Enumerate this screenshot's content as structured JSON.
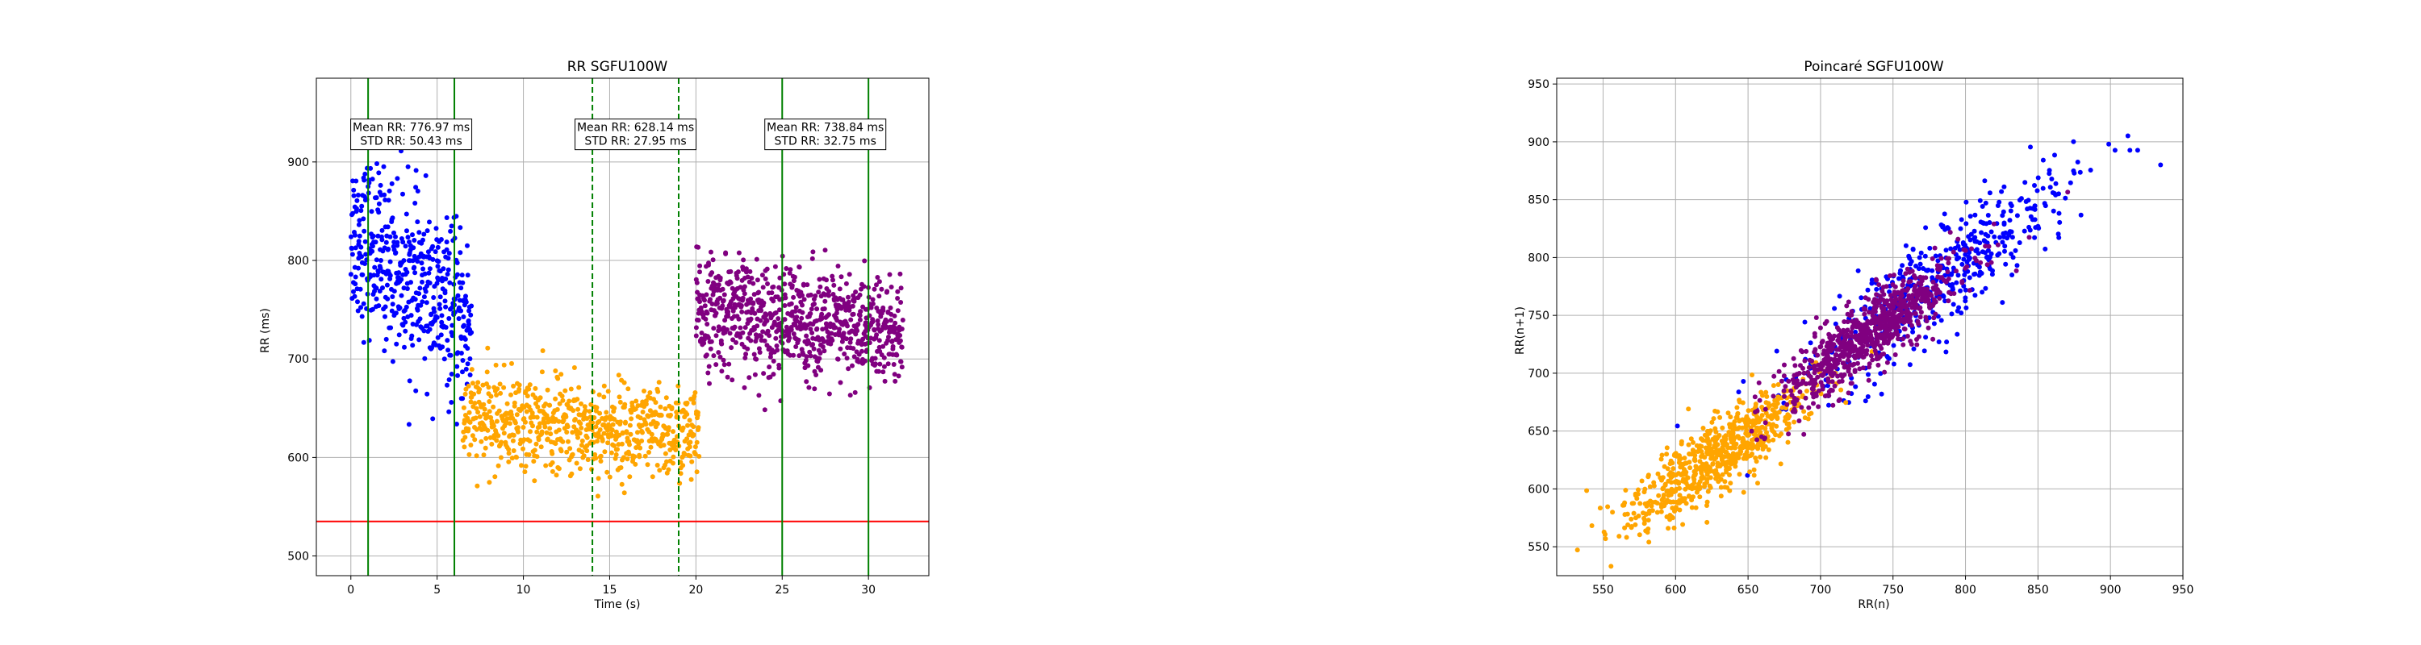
{
  "figure": {
    "background": "#ffffff"
  },
  "chart_data": [
    {
      "type": "scatter",
      "title": "RR SGFU100W",
      "xlabel": "Time (s)",
      "ylabel": "RR (ms)",
      "xlim": [
        -2,
        33.5
      ],
      "ylim": [
        480,
        985
      ],
      "xticks": [
        0,
        5,
        10,
        15,
        20,
        25,
        30
      ],
      "yticks": [
        500,
        600,
        700,
        800,
        900
      ],
      "grid": true,
      "threshold_line": {
        "y": 535,
        "color": "#ff0000"
      },
      "solid_vlines": {
        "x": [
          1,
          6,
          25,
          30
        ],
        "color": "#008000"
      },
      "dashed_vlines": {
        "x": [
          14,
          19
        ],
        "color": "#008000"
      },
      "annotations": [
        {
          "x": 3.5,
          "y": 928,
          "lines": [
            "Mean RR: 776.97 ms",
            "STD RR: 50.43 ms"
          ]
        },
        {
          "x": 16.5,
          "y": 928,
          "lines": [
            "Mean RR: 628.14 ms",
            "STD RR: 27.95 ms"
          ]
        },
        {
          "x": 27.5,
          "y": 928,
          "lines": [
            "Mean RR: 738.84 ms",
            "STD RR: 32.75 ms"
          ]
        }
      ],
      "series": [
        {
          "color": "#0000ff",
          "x_range": [
            0,
            7
          ],
          "mean": 777,
          "std": 50,
          "count": 480,
          "trend": [
            830,
            730
          ]
        },
        {
          "color": "#ffa500",
          "x_range": [
            6.5,
            20.2
          ],
          "mean": 628,
          "std": 28,
          "count": 700,
          "trend": [
            640,
            620
          ]
        },
        {
          "color": "#800080",
          "x_range": [
            20,
            32
          ],
          "mean": 739,
          "std": 33,
          "count": 800,
          "trend": [
            750,
            725
          ]
        }
      ]
    },
    {
      "type": "scatter",
      "title": "Poincaré SGFU100W",
      "xlabel": "RR(n)",
      "ylabel": "RR(n+1)",
      "xlim": [
        518,
        950
      ],
      "ylim": [
        525,
        955
      ],
      "xticks": [
        550,
        600,
        650,
        700,
        750,
        800,
        850,
        900,
        950
      ],
      "yticks": [
        550,
        600,
        650,
        700,
        750,
        800,
        850,
        900,
        950
      ],
      "grid": true,
      "series": [
        {
          "color": "#0000ff",
          "center": [
            780,
            780
          ],
          "spread_along": 45,
          "spread_across": 18,
          "count": 480
        },
        {
          "color": "#ffa500",
          "center": [
            628,
            628
          ],
          "spread_along": 30,
          "spread_across": 12,
          "count": 700
        },
        {
          "color": "#800080",
          "center": [
            735,
            735
          ],
          "spread_along": 30,
          "spread_across": 11,
          "count": 800
        }
      ]
    }
  ]
}
